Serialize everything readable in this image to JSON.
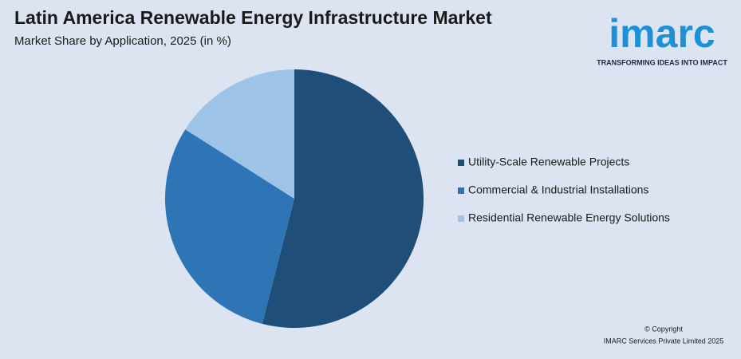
{
  "chart_data": {
    "type": "pie",
    "title": "Latin America Renewable Energy Infrastructure Market",
    "subtitle": "Market Share by Application, 2025 (in %)",
    "categories": [
      "Utility-Scale Renewable Projects",
      "Commercial & Industrial Installations",
      "Residential Renewable Energy Solutions"
    ],
    "values": [
      54,
      30,
      16
    ],
    "colors": [
      "#1f4e79",
      "#2e75b6",
      "#9dc3e6"
    ],
    "legend": "right"
  },
  "logo": {
    "name": "imarc",
    "tagline": "TRANSFORMING IDEAS INTO IMPACT"
  },
  "footer": {
    "copyright": "© Copyright",
    "company": "IMARC Services Private Limited 2025"
  }
}
